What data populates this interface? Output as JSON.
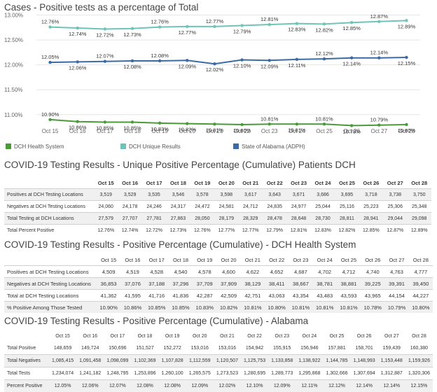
{
  "chart_data": {
    "type": "line",
    "title": "Cases - Positive tests as a percentage of Total",
    "categories": [
      "Oct 15",
      "Oct 16",
      "Oct 17",
      "Oct 18",
      "Oct 19",
      "Oct 20",
      "Oct 21",
      "Oct 22",
      "Oct 23",
      "Oct 24",
      "Oct 25",
      "Oct 26",
      "Oct 27",
      "Oct 28"
    ],
    "yticks": [
      "13.00%",
      "12.50%",
      "12.00%",
      "11.50%",
      "11.00%"
    ],
    "ylim": [
      10.8,
      13.05
    ],
    "grid": true,
    "legend_position": "bottom",
    "series": [
      {
        "name": "DCH Health System",
        "color": "#4a9a3a",
        "values": [
          10.9,
          10.86,
          10.85,
          10.85,
          10.83,
          10.82,
          10.81,
          10.8,
          10.81,
          10.81,
          10.81,
          10.78,
          10.79,
          10.8
        ],
        "labels": [
          "10.90%",
          "10.86%",
          "10.85%",
          "10.85%",
          "10.83%",
          "10.82%",
          "10.81%",
          "10.80%",
          "10.81%",
          "10.81%",
          "10.81%",
          "10.78%",
          "10.79%",
          "10.80%"
        ]
      },
      {
        "name": "DCH Unique Results",
        "color": "#6ec4b8",
        "values": [
          12.76,
          12.74,
          12.72,
          12.73,
          12.76,
          12.77,
          12.77,
          12.79,
          12.81,
          12.83,
          12.82,
          12.85,
          12.87,
          12.89
        ],
        "labels": [
          "12.76%",
          "12.74%",
          "12.72%",
          "12.73%",
          "12.76%",
          "12.77%",
          "12.77%",
          "12.79%",
          "12.81%",
          "12.83%",
          "12.82%",
          "12.85%",
          "12.87%",
          "12.89%"
        ]
      },
      {
        "name": "State of Alabama (ADPH)",
        "color": "#3b6ba5",
        "values": [
          12.05,
          12.06,
          12.07,
          12.08,
          12.08,
          12.09,
          12.02,
          12.1,
          12.09,
          12.11,
          12.12,
          12.14,
          12.14,
          12.15
        ],
        "labels": [
          "12.05%",
          "12.06%",
          "12.07%",
          "12.08%",
          "12.08%",
          "12.09%",
          "12.02%",
          "12.10%",
          "12.09%",
          "12.11%",
          "12.12%",
          "12.14%",
          "12.14%",
          "12.15%"
        ]
      }
    ]
  },
  "table1": {
    "title": "COVID-19 Testing Results - Unique Positive Percentage (Cumulative) Patients DCH",
    "columns": [
      "Oct 15",
      "Oct 16",
      "Oct 17",
      "Oct 18",
      "Oct 19",
      "Oct 20",
      "Oct 21",
      "Oct 22",
      "Oct 23",
      "Oct 24",
      "Oct 25",
      "Oct 26",
      "Oct 27",
      "Oct 28"
    ],
    "rows": [
      {
        "label": "Positives at DCH Testing Locations",
        "values": [
          "3,519",
          "3,529",
          "3,535",
          "3,546",
          "3,578",
          "3,598",
          "3,617",
          "3,643",
          "3,671",
          "3,686",
          "3,695",
          "3,718",
          "3,738",
          "3,750"
        ]
      },
      {
        "label": "Negatives at DCH Testing Locations",
        "values": [
          "24,060",
          "24,178",
          "24,246",
          "24,317",
          "24,472",
          "24,581",
          "24,712",
          "24,835",
          "24,977",
          "25,044",
          "25,116",
          "25,223",
          "25,306",
          "25,348"
        ]
      },
      {
        "label": "Total Testing at DCH Locations",
        "values": [
          "27,579",
          "27,707",
          "27,781",
          "27,863",
          "28,050",
          "28,179",
          "28,329",
          "28,478",
          "28,648",
          "28,730",
          "28,811",
          "28,941",
          "29,044",
          "29,098"
        ]
      },
      {
        "label": "Total Percent Positive",
        "values": [
          "12.76%",
          "12.74%",
          "12.72%",
          "12.73%",
          "12.76%",
          "12.77%",
          "12.77%",
          "12.79%",
          "12.81%",
          "12.83%",
          "12.82%",
          "12.85%",
          "12.87%",
          "12.89%"
        ]
      }
    ]
  },
  "table2": {
    "title": "COVID-19 Testing Results - Positive Percentage (Cumulative) - DCH Health System",
    "columns": [
      "Oct 15",
      "Oct 16",
      "Oct 17",
      "Oct 18",
      "Oct 19",
      "Oct 20",
      "Oct 21",
      "Oct 22",
      "Oct 23",
      "Oct 24",
      "Oct 25",
      "Oct 26",
      "Oct 27",
      "Oct 28"
    ],
    "rows": [
      {
        "label": "Positives at DCH Testing Locations",
        "values": [
          "4,509",
          "4,519",
          "4,528",
          "4,540",
          "4,578",
          "4,600",
          "4,622",
          "4,652",
          "4,687",
          "4,702",
          "4,712",
          "4,740",
          "4,763",
          "4,777"
        ]
      },
      {
        "label": "Negatives at DCH Testing Locations",
        "values": [
          "36,853",
          "37,076",
          "37,188",
          "37,296",
          "37,709",
          "37,909",
          "38,129",
          "38,411",
          "38,667",
          "38,781",
          "38,881",
          "39,225",
          "39,391",
          "39,450"
        ]
      },
      {
        "label": "Total at DCH Testing Locations",
        "values": [
          "41,362",
          "41,595",
          "41,716",
          "41,836",
          "42,287",
          "42,509",
          "42,751",
          "43,063",
          "43,354",
          "43,483",
          "43,593",
          "43,965",
          "44,154",
          "44,227"
        ]
      },
      {
        "label": "% Positive Among Those Tested",
        "values": [
          "10.90%",
          "10.86%",
          "10.85%",
          "10.85%",
          "10.83%",
          "10.82%",
          "10.81%",
          "10.80%",
          "10.81%",
          "10.81%",
          "10.81%",
          "10.78%",
          "10.79%",
          "10.80%"
        ]
      }
    ]
  },
  "table3": {
    "title": "COVID-19 Testing Results - Positive Percentage (Cumulative) - Alabama",
    "columns": [
      "Oct 15",
      "Oct 16",
      "Oct 17",
      "Oct 18",
      "Oct 19",
      "Oct 20",
      "Oct 21",
      "Oct 22",
      "Oct 23",
      "Oct 24",
      "Oct 25",
      "Oct 26",
      "Oct 27",
      "Oct 28"
    ],
    "rows": [
      {
        "label": "Total Positive",
        "values": [
          "148,659",
          "149,724",
          "150,696",
          "151,527",
          "152,272",
          "153,016",
          "153,016",
          "154,942",
          "155,915",
          "156,946",
          "157,881",
          "158,701",
          "159,439",
          "160,380"
        ]
      },
      {
        "label": "Total Negatives",
        "values": [
          "1,085,415",
          "1,091,458",
          "1,098,099",
          "1,102,369",
          "1,107,828",
          "1,112,559",
          "1,120,507",
          "1,125,753",
          "1,133,858",
          "1,138,922",
          "1,144,785",
          "1,148,993",
          "1,153,448",
          "1,159,926"
        ]
      },
      {
        "label": "Total Tests",
        "values": [
          "1,234,074",
          "1,241,182",
          "1,248,795",
          "1,253,896",
          "1,260,100",
          "1,265,575",
          "1,273,523",
          "1,280,695",
          "1,289,773",
          "1,295,868",
          "1,302,666",
          "1,307,694",
          "1,312,887",
          "1,320,306"
        ]
      },
      {
        "label": "Percent Positive",
        "values": [
          "12.05%",
          "12.06%",
          "12.07%",
          "12.08%",
          "12.08%",
          "12.09%",
          "12.02%",
          "12.10%",
          "12.09%",
          "12.11%",
          "12.12%",
          "12.14%",
          "12.14%",
          "12.15%"
        ]
      }
    ]
  }
}
